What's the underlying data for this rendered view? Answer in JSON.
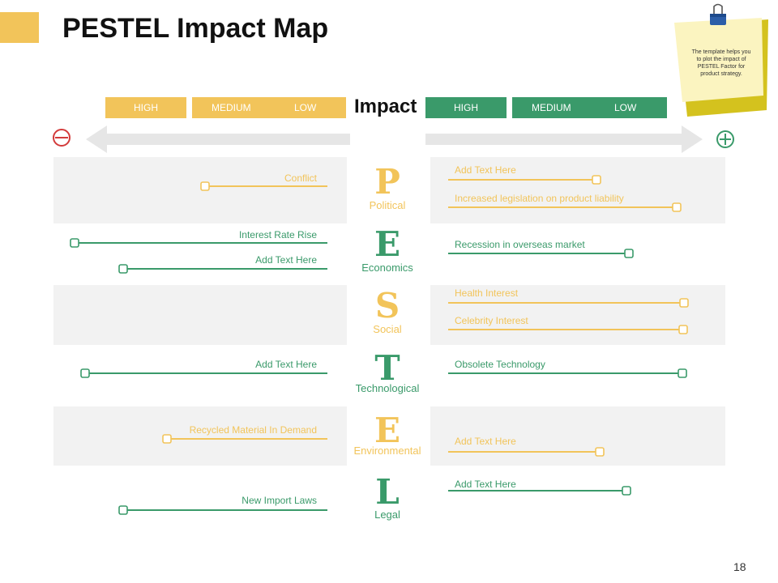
{
  "title": "PESTEL Impact Map",
  "page_number": "18",
  "note": "The template helps you to plot the impact of PESTEL Factor for product strategy.",
  "impact_label": "Impact",
  "negative_scale": {
    "high": "HIGH",
    "medium": "MEDIUM",
    "low": "LOW"
  },
  "positive_scale": {
    "high": "HIGH",
    "medium": "MEDIUM",
    "low": "LOW"
  },
  "colors": {
    "yellow": "#f2c45a",
    "green": "#3a9a6a",
    "band": "#f2f2f2",
    "arrow": "#e6e6e6",
    "minus": "#d33b3b"
  },
  "icons": {
    "negative": "minus-circle-icon",
    "positive": "plus-circle-icon",
    "note": "binder-clip-icon"
  },
  "factors": [
    {
      "letter": "P",
      "name": "Political",
      "negative": [
        {
          "label": "Conflict"
        }
      ],
      "positive": [
        {
          "label": "Add Text Here"
        },
        {
          "label": "Increased legislation on product liability"
        }
      ]
    },
    {
      "letter": "E",
      "name": "Economics",
      "negative": [
        {
          "label": "Interest Rate Rise"
        },
        {
          "label": "Add Text Here"
        }
      ],
      "positive": [
        {
          "label": "Recession in overseas market"
        }
      ]
    },
    {
      "letter": "S",
      "name": "Social",
      "negative": [],
      "positive": [
        {
          "label": "Health Interest"
        },
        {
          "label": "Celebrity Interest"
        }
      ]
    },
    {
      "letter": "T",
      "name": "Technological",
      "negative": [
        {
          "label": "Add Text Here"
        }
      ],
      "positive": [
        {
          "label": "Obsolete Technology"
        }
      ]
    },
    {
      "letter": "E",
      "name": "Environmental",
      "negative": [
        {
          "label": "Recycled Material In Demand"
        }
      ],
      "positive": [
        {
          "label": "Add Text Here"
        }
      ]
    },
    {
      "letter": "L",
      "name": "Legal",
      "negative": [
        {
          "label": "New Import Laws"
        }
      ],
      "positive": [
        {
          "label": "Add Text Here"
        }
      ]
    }
  ]
}
